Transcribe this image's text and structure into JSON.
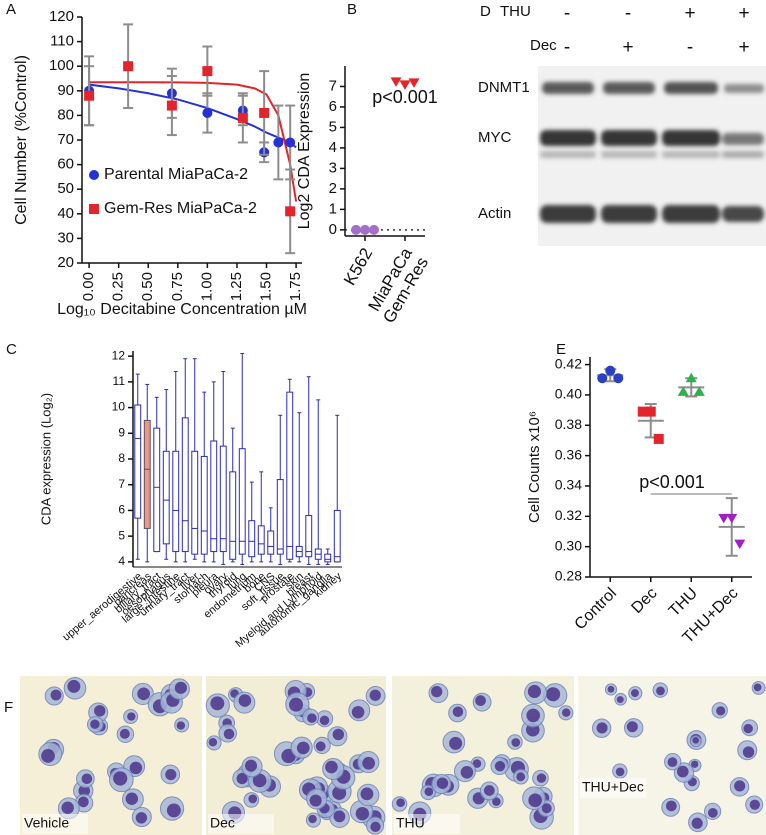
{
  "chart_data": [
    {
      "panel": "A",
      "type": "scatter",
      "xlabel": "Log₁₀ Decitabine Concentration µM",
      "ylabel": "Cell Number (%Control)",
      "xlim": [
        -0.06,
        1.8
      ],
      "ylim": [
        20,
        120
      ],
      "xticks": [
        {
          "value": 0,
          "label": "0.00"
        },
        {
          "value": 0.25,
          "label": "0.25"
        },
        {
          "value": 0.5,
          "label": "0.50"
        },
        {
          "value": 0.75,
          "label": "0.75"
        },
        {
          "value": 1,
          "label": "1.00"
        },
        {
          "value": 1.25,
          "label": "1.25"
        },
        {
          "value": 1.5,
          "label": "1.50"
        },
        {
          "value": 1.75,
          "label": "1.75"
        }
      ],
      "yticks": [
        20,
        30,
        40,
        50,
        60,
        70,
        80,
        90,
        100,
        110,
        120
      ],
      "legend": "lower left",
      "error_color": "#8c8c8c",
      "fit_x": [
        0,
        0.25,
        0.5,
        0.75,
        1.0,
        1.25,
        1.4,
        1.5,
        1.6,
        1.7,
        1.75
      ],
      "series": [
        {
          "name": "Parental MiaPaCa-2",
          "color": "#2431d6",
          "marker": "circle",
          "x": [
            0,
            0.7,
            1.0,
            1.3,
            1.48,
            1.6,
            1.7
          ],
          "values": [
            90,
            89,
            81,
            82,
            65,
            69,
            69
          ],
          "errors": [
            14,
            10,
            8,
            6,
            4,
            15,
            15
          ],
          "fit": [
            92.5,
            91,
            89,
            86.5,
            83,
            78.5,
            75.5,
            73,
            71,
            69,
            67
          ]
        },
        {
          "name": "Gem-Res MiaPaCa-2",
          "color": "#e3242b",
          "marker": "square",
          "x": [
            0,
            0.33,
            0.7,
            1.0,
            1.3,
            1.48,
            1.7
          ],
          "values": [
            88,
            100,
            84,
            98,
            79,
            81,
            41
          ],
          "errors": [
            12,
            17,
            12,
            10,
            10,
            17,
            17
          ],
          "fit": [
            93.5,
            93.5,
            93.5,
            93.4,
            93.2,
            92.5,
            91,
            88.5,
            80,
            60,
            45
          ]
        }
      ]
    },
    {
      "panel": "B",
      "type": "dot",
      "ylabel": "Log2 CDA Expression",
      "annotation": "p<0.001",
      "ylim": [
        -0.3,
        8
      ],
      "yticks": [
        0,
        1,
        2,
        3,
        4,
        5,
        6,
        7
      ],
      "reference_line": 0,
      "categories": [
        "K562",
        "MiaPaCa\nGem-Res"
      ],
      "values": [
        [
          0,
          0,
          0
        ],
        [
          7.25,
          7.1,
          7.2
        ]
      ],
      "colors": [
        "#a36fc9",
        "#e3242b"
      ],
      "markers": [
        "circle",
        "triangle-down"
      ]
    },
    {
      "panel": "C",
      "type": "box",
      "ylabel": "CDA expression (Log₂)",
      "ylim": [
        3.8,
        12.2
      ],
      "yticks": [
        4,
        5,
        6,
        7,
        8,
        9,
        10,
        11,
        12
      ],
      "color": "#2a2ab8",
      "categories": [
        "upper_aerodigestive",
        "pancreas",
        "biliary_tract",
        "oesophagus",
        "large_intestine",
        "urinary_tract",
        "liver",
        "stomach",
        "pleura",
        "ovary",
        "thyroid",
        "lung",
        "endometrium",
        "bone",
        "CNS",
        "soft_tissue",
        "prostate",
        "skin",
        "breast",
        "Myeloid and Lymphoid",
        "autonomic_ganglia",
        "kidney"
      ],
      "boxes": [
        {
          "min": 4.1,
          "q1": 5.7,
          "median": 8.8,
          "q3": 10.1,
          "max": 11.3
        },
        {
          "min": 4.0,
          "q1": 5.3,
          "median": 7.6,
          "q3": 9.5,
          "max": 10.9
        },
        {
          "min": 4.4,
          "q1": 4.4,
          "median": 6.9,
          "q3": 9.2,
          "max": 10.4
        },
        {
          "min": 4.1,
          "q1": 4.7,
          "median": 6.4,
          "q3": 8.3,
          "max": 10.7
        },
        {
          "min": 4.0,
          "q1": 4.4,
          "median": 6.0,
          "q3": 8.3,
          "max": 11.4
        },
        {
          "min": 4.0,
          "q1": 4.4,
          "median": 5.6,
          "q3": 9.6,
          "max": 11.9
        },
        {
          "min": 4.1,
          "q1": 4.3,
          "median": 5.3,
          "q3": 8.3,
          "max": 11.9
        },
        {
          "min": 4.0,
          "q1": 4.3,
          "median": 5.2,
          "q3": 8.1,
          "max": 10.6
        },
        {
          "min": 4.0,
          "q1": 4.4,
          "median": 4.9,
          "q3": 8.7,
          "max": 11.0
        },
        {
          "min": 3.9,
          "q1": 4.4,
          "median": 4.9,
          "q3": 8.5,
          "max": 11.4
        },
        {
          "min": 4.0,
          "q1": 4.1,
          "median": 4.8,
          "q3": 7.5,
          "max": 9.2
        },
        {
          "min": 3.9,
          "q1": 4.3,
          "median": 4.8,
          "q3": 8.4,
          "max": 12.1
        },
        {
          "min": 4.0,
          "q1": 4.2,
          "median": 4.8,
          "q3": 5.6,
          "max": 7.1
        },
        {
          "min": 4.0,
          "q1": 4.3,
          "median": 4.7,
          "q3": 5.4,
          "max": 7.5
        },
        {
          "min": 4.0,
          "q1": 4.3,
          "median": 4.6,
          "q3": 5.2,
          "max": 6.1
        },
        {
          "min": 3.9,
          "q1": 4.3,
          "median": 4.5,
          "q3": 7.2,
          "max": 9.7
        },
        {
          "min": 4.0,
          "q1": 4.1,
          "median": 4.6,
          "q3": 10.6,
          "max": 11.1
        },
        {
          "min": 4.0,
          "q1": 4.2,
          "median": 4.4,
          "q3": 4.6,
          "max": 9.8
        },
        {
          "min": 3.9,
          "q1": 4.2,
          "median": 4.4,
          "q3": 5.8,
          "max": 11.2
        },
        {
          "min": 3.9,
          "q1": 4.1,
          "median": 4.3,
          "q3": 4.5,
          "max": 10.3
        },
        {
          "min": 3.9,
          "q1": 4.0,
          "median": 4.1,
          "q3": 4.3,
          "max": 4.5
        },
        {
          "min": 4.0,
          "q1": 4.0,
          "median": 4.2,
          "q3": 6.0,
          "max": 9.7
        }
      ],
      "fills": [
        "#ffffff",
        "#f2948c",
        "#ffffff",
        "#ffffff",
        "#ffffff",
        "#ffffff",
        "#ffffff",
        "#ffffff",
        "#ffffff",
        "#ffffff",
        "#ffffff",
        "#ffffff",
        "#ffffff",
        "#ffffff",
        "#ffffff",
        "#ffffff",
        "#ffffff",
        "#ffffff",
        "#ffffff",
        "#ffffff",
        "#ffffff",
        "#ffffff"
      ]
    },
    {
      "panel": "E",
      "type": "dot",
      "ylabel": "Cell Counts x10⁶",
      "annotation": "p<0.001",
      "ylim": [
        0.28,
        0.425
      ],
      "yticks": [
        0.28,
        {
          "value": 0.3,
          "label": "0.30"
        },
        0.32,
        0.34,
        0.36,
        0.38,
        {
          "value": 0.4,
          "label": "0.40"
        },
        0.42
      ],
      "categories": [
        "Control",
        "Dec",
        "THU",
        "THU+Dec"
      ],
      "values": [
        [
          0.416,
          0.411,
          0.411
        ],
        [
          0.389,
          0.389,
          0.371
        ],
        [
          0.411,
          0.402,
          0.402
        ],
        [
          0.319,
          0.319,
          0.302
        ]
      ],
      "means": [
        0.413,
        0.383,
        0.405,
        0.313
      ],
      "sds": [
        0.004,
        0.011,
        0.006,
        0.019
      ],
      "colors": [
        "#2b3fc4",
        "#e3242b",
        "#2db34a",
        "#a020c8"
      ],
      "markers": [
        "circle",
        "square",
        "triangle-up",
        "triangle-down"
      ],
      "error_color": "#8c8c8c"
    }
  ],
  "blot": {
    "panel": "D",
    "treatments": [
      {
        "name": "THU",
        "signs": [
          "-",
          "-",
          "+",
          "+"
        ]
      },
      {
        "name": "Dec",
        "signs": [
          "-",
          "+",
          "-",
          "+"
        ]
      }
    ],
    "proteins": [
      "DNMT1",
      "MYC",
      "Actin"
    ]
  },
  "micrographs": {
    "panel": "F",
    "labels": [
      "Vehicle",
      "Dec",
      "THU",
      "THU+Dec"
    ]
  }
}
